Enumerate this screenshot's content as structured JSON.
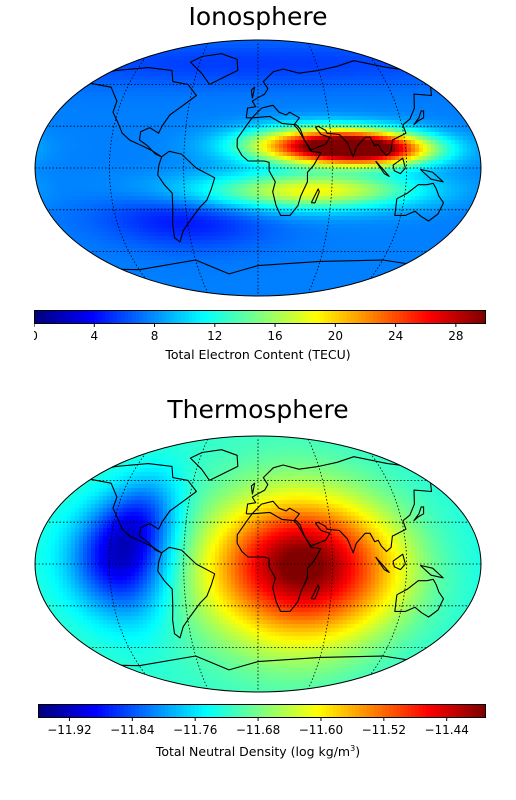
{
  "panels": [
    {
      "id": "ionosphere",
      "title": "Ionosphere",
      "colorbar": {
        "label": "Total Electron Content (TECU)",
        "label_sup": "",
        "label_tail": "",
        "min": 0,
        "max": 30,
        "ticks": [
          0,
          4,
          8,
          12,
          16,
          20,
          24,
          28
        ],
        "tick_labels": [
          "0",
          "4",
          "8",
          "12",
          "16",
          "20",
          "24",
          "28"
        ]
      },
      "field": {
        "background_value": 7.5,
        "blobs": [
          {
            "lon": 55,
            "lat": 16,
            "slon": 45,
            "slat": 9,
            "amp": 20
          },
          {
            "lon": 95,
            "lat": 13,
            "slon": 35,
            "slat": 8,
            "amp": 14
          },
          {
            "lon": 20,
            "lat": -18,
            "slon": 70,
            "slat": 10,
            "amp": 7
          },
          {
            "lon": 60,
            "lat": -15,
            "slon": 50,
            "slat": 8,
            "amp": 5
          },
          {
            "lon": -60,
            "lat": -35,
            "slon": 50,
            "slat": 15,
            "amp": -3.5
          },
          {
            "lon": 0,
            "lat": 75,
            "slon": 200,
            "slat": 12,
            "amp": -2
          }
        ]
      }
    },
    {
      "id": "thermosphere",
      "title": "Thermosphere",
      "colorbar": {
        "label": "Total Neutral Density (log kg/m",
        "label_sup": "3",
        "label_tail": ")",
        "min": -11.96,
        "max": -11.39,
        "ticks": [
          -11.92,
          -11.84,
          -11.76,
          -11.68,
          -11.6,
          -11.52,
          -11.44
        ],
        "tick_labels": [
          "−11.92",
          "−11.84",
          "−11.76",
          "−11.68",
          "−11.60",
          "−11.52",
          "−11.44"
        ]
      },
      "field": {
        "background_value": -11.72,
        "blobs": [
          {
            "lon": 40,
            "lat": -5,
            "slon": 60,
            "slat": 38,
            "amp": 0.27
          },
          {
            "lon": 30,
            "lat": 5,
            "slon": 35,
            "slat": 25,
            "amp": 0.08
          },
          {
            "lon": -110,
            "lat": 5,
            "slon": 28,
            "slat": 30,
            "amp": -0.2
          },
          {
            "lon": -95,
            "lat": 35,
            "slon": 22,
            "slat": 20,
            "amp": -0.06
          },
          {
            "lon": 150,
            "lat": 0,
            "slon": 35,
            "slat": 40,
            "amp": -0.03
          }
        ]
      }
    }
  ],
  "colormap": "jet",
  "gridlines": {
    "lat": [
      -60,
      -30,
      0,
      30,
      60
    ],
    "lon": [
      -120,
      -60,
      0,
      60,
      120,
      180
    ]
  }
}
